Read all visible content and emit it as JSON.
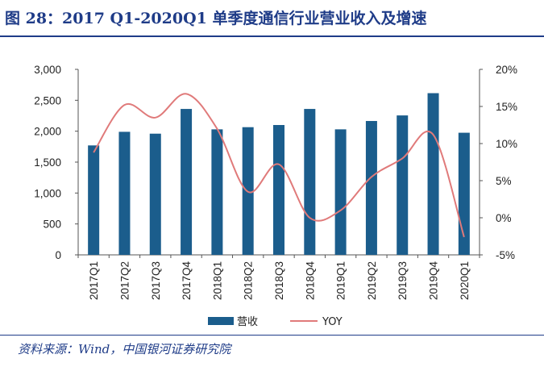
{
  "title": "图 28：2017 Q1-2020Q1 单季度通信行业营业收入及增速",
  "source": "资料来源：Wind，中国银河证券研究院",
  "colors": {
    "bar": "#1b5d8c",
    "line": "#e07a7a",
    "title": "#1f3c88"
  },
  "chart_data": {
    "type": "bar",
    "categories": [
      "2017Q1",
      "2017Q2",
      "2017Q3",
      "2017Q4",
      "2018Q1",
      "2018Q2",
      "2018Q3",
      "2018Q4",
      "2019Q1",
      "2019Q2",
      "2019Q3",
      "2019Q4",
      "2020Q1"
    ],
    "series": [
      {
        "name": "营收",
        "type": "bar",
        "axis": "left",
        "values": [
          1770,
          1990,
          1960,
          2360,
          2030,
          2065,
          2100,
          2360,
          2030,
          2165,
          2255,
          2615,
          1975
        ]
      },
      {
        "name": "YOY",
        "type": "line",
        "axis": "right",
        "unit": "%",
        "values": [
          8.8,
          15.2,
          13.5,
          16.7,
          12.0,
          3.5,
          7.2,
          0.0,
          1.0,
          5.5,
          8.0,
          11.2,
          -2.6
        ]
      }
    ],
    "y_left": {
      "min": 0,
      "max": 3000,
      "ticks": [
        "0",
        "500",
        "1,000",
        "1,500",
        "2,000",
        "2,500",
        "3,000"
      ]
    },
    "y_right": {
      "min": -5,
      "max": 20,
      "ticks": [
        "-5%",
        "0%",
        "5%",
        "10%",
        "15%",
        "20%"
      ]
    },
    "grid": false,
    "legend": "bottom-center"
  }
}
